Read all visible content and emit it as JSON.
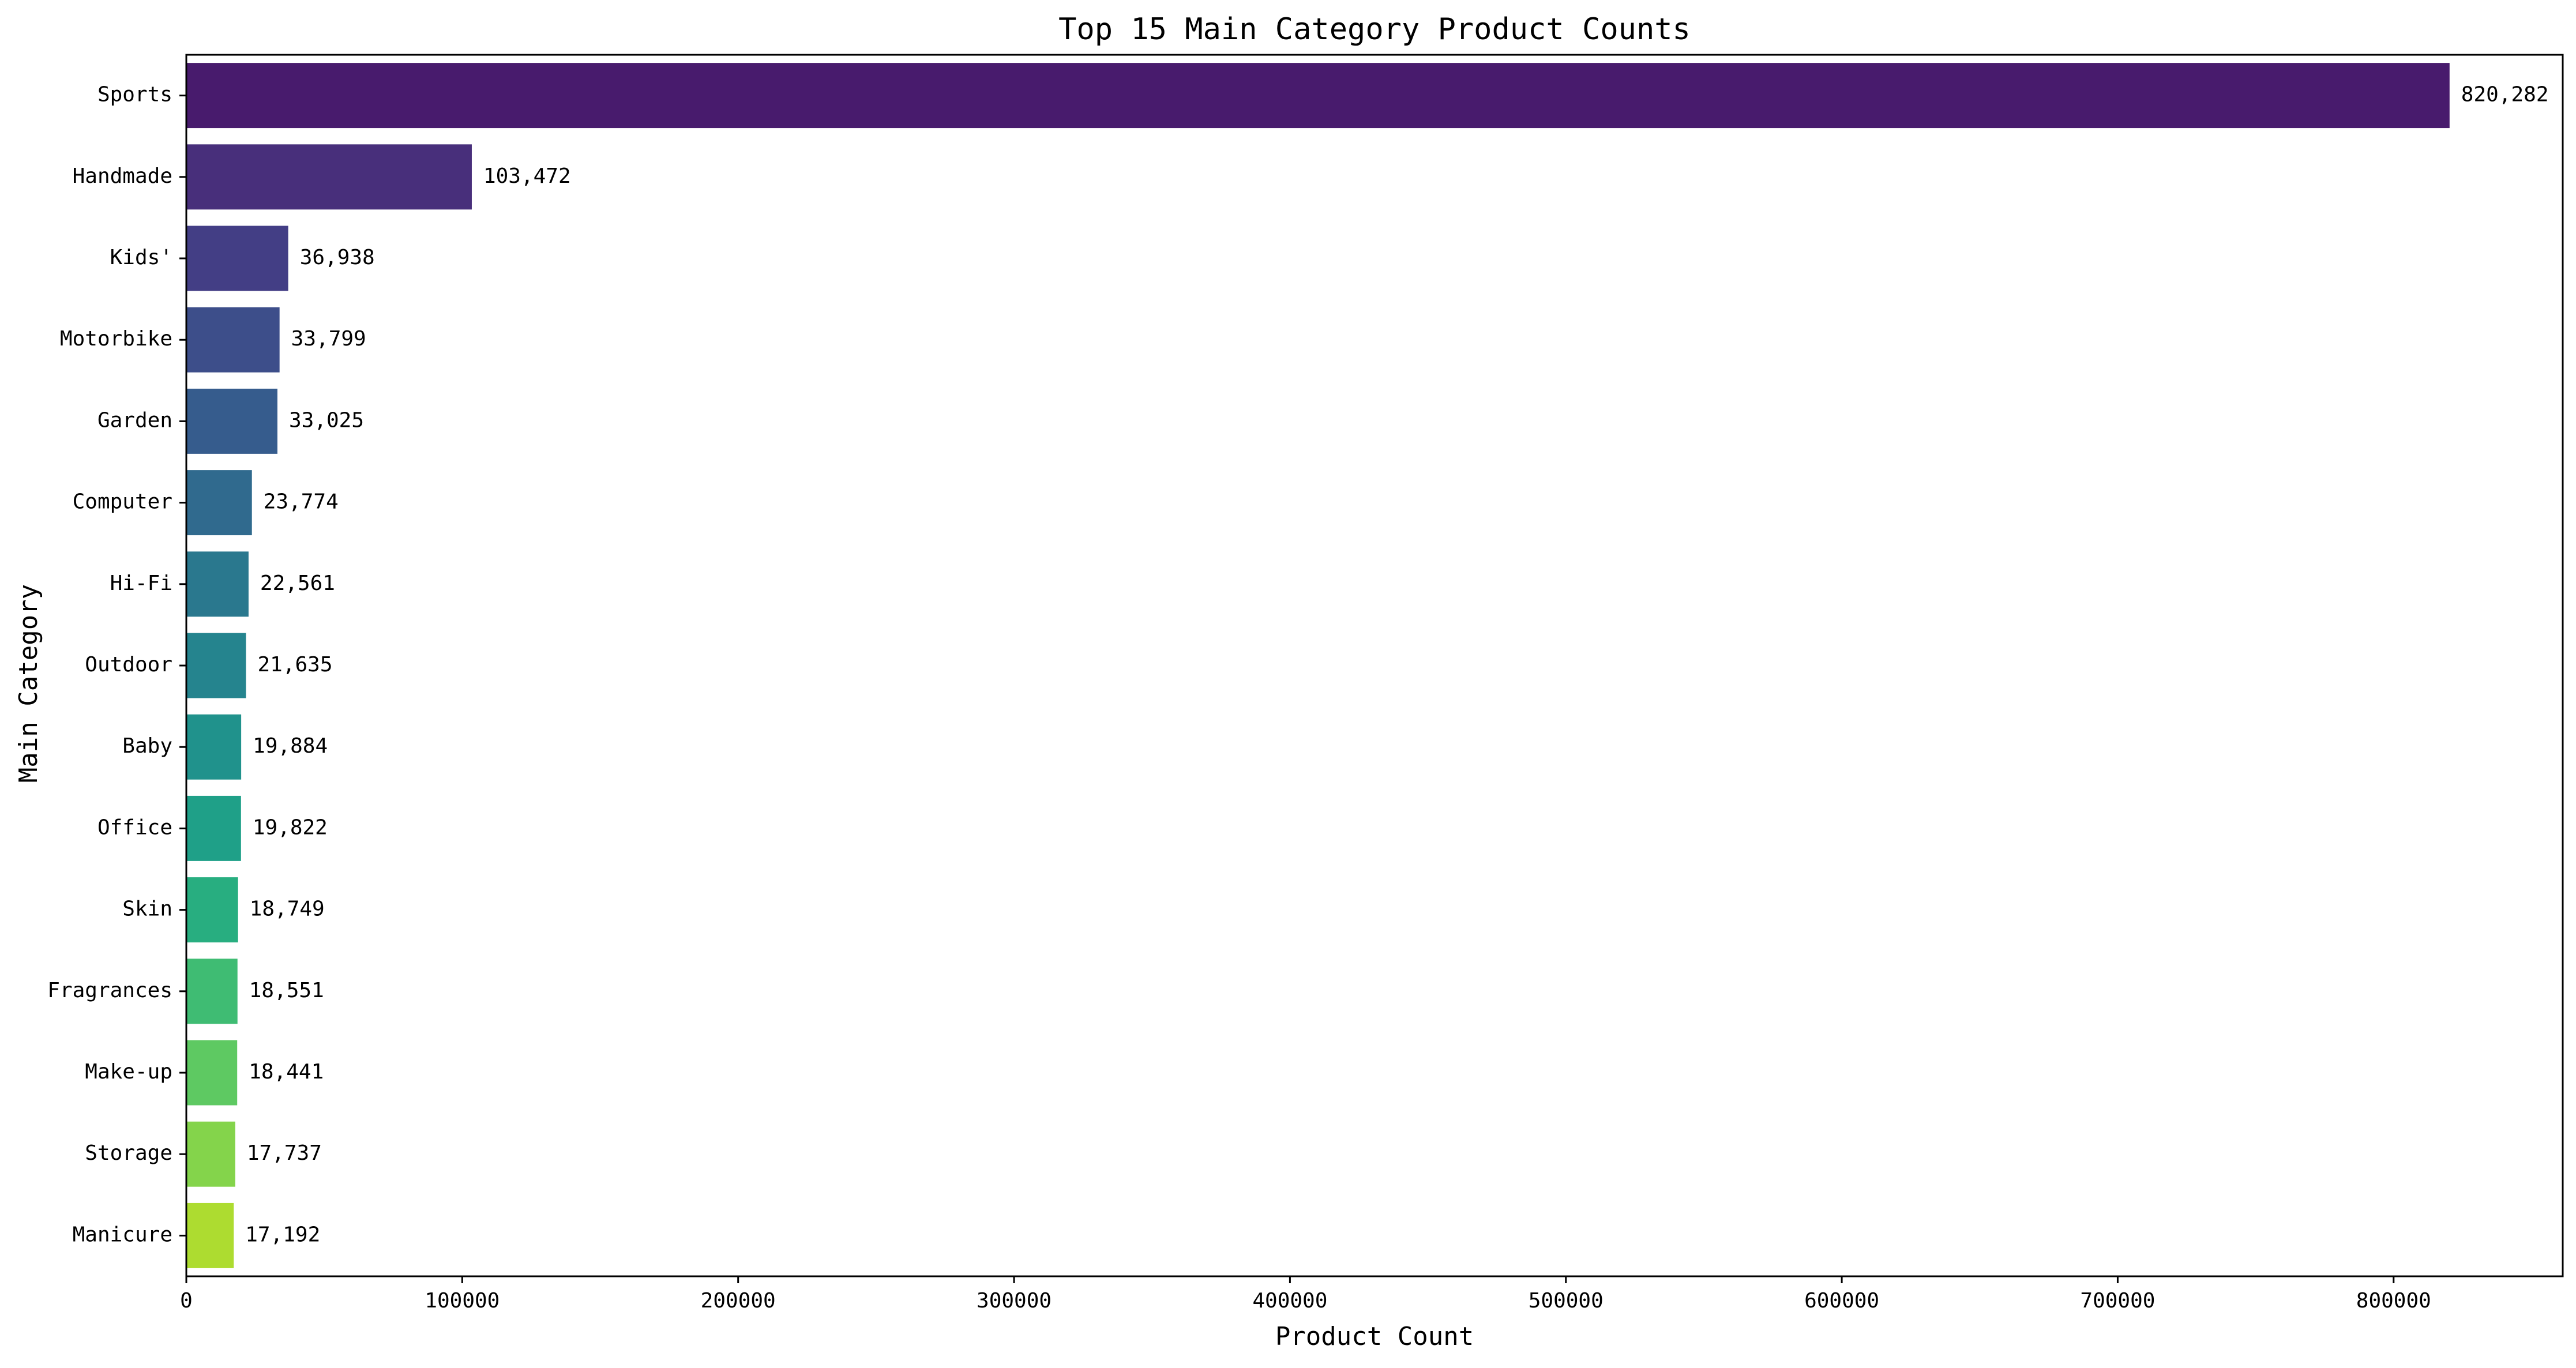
{
  "chart_data": {
    "type": "bar",
    "orientation": "horizontal",
    "title": "Top 15 Main Category Product Counts",
    "xlabel": "Product Count",
    "ylabel": "Main Category",
    "categories": [
      "Sports",
      "Handmade",
      "Kids'",
      "Motorbike",
      "Garden",
      "Computer",
      "Hi-Fi",
      "Outdoor",
      "Baby",
      "Office",
      "Skin",
      "Fragrances",
      "Make-up",
      "Storage",
      "Manicure"
    ],
    "values": [
      820282,
      103472,
      36938,
      33799,
      33025,
      23774,
      22561,
      21635,
      19884,
      19822,
      18749,
      18551,
      18441,
      17737,
      17192
    ],
    "data_labels": [
      "820,282",
      "103,472",
      "36,938",
      "33,799",
      "33,025",
      "23,774",
      "22,561",
      "21,635",
      "19,884",
      "19,822",
      "18,749",
      "18,551",
      "18,441",
      "17,737",
      "17,192"
    ],
    "xlim": [
      0,
      861296
    ],
    "xticks": [
      0,
      100000,
      200000,
      300000,
      400000,
      500000,
      600000,
      700000,
      800000
    ],
    "xtick_labels": [
      "0",
      "100000",
      "200000",
      "300000",
      "400000",
      "500000",
      "600000",
      "700000",
      "800000"
    ],
    "grid": false,
    "legend": "none",
    "palette": "viridis",
    "colors": [
      "#481b6d",
      "#482f7b",
      "#433e85",
      "#3d4e8a",
      "#365c8d",
      "#306a8e",
      "#2a788e",
      "#25848e",
      "#20928c",
      "#1fa088",
      "#28ae80",
      "#3fbc73",
      "#5ec962",
      "#84d44b",
      "#addc30"
    ],
    "colors_tail": "#d0e11c"
  }
}
